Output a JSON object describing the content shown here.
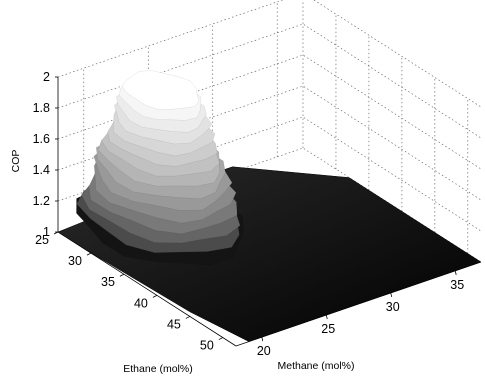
{
  "chart_data": {
    "type": "surface",
    "title": "",
    "xlabel": "Methane (mol%)",
    "ylabel": "Ethane (mol%)",
    "zlabel": "COP",
    "x_ticks": [
      20,
      25,
      30,
      35
    ],
    "y_ticks": [
      25,
      30,
      35,
      40,
      45,
      50
    ],
    "z_ticks": [
      1,
      1.2,
      1.4,
      1.6,
      1.8,
      2
    ],
    "x_range": [
      18,
      37
    ],
    "y_range": [
      25,
      52
    ],
    "z_range": [
      1,
      2
    ],
    "grid": true,
    "colormap": "gray",
    "peak": {
      "x": 24,
      "y": 29,
      "z": 1.85
    },
    "base_value": 1.0
  }
}
